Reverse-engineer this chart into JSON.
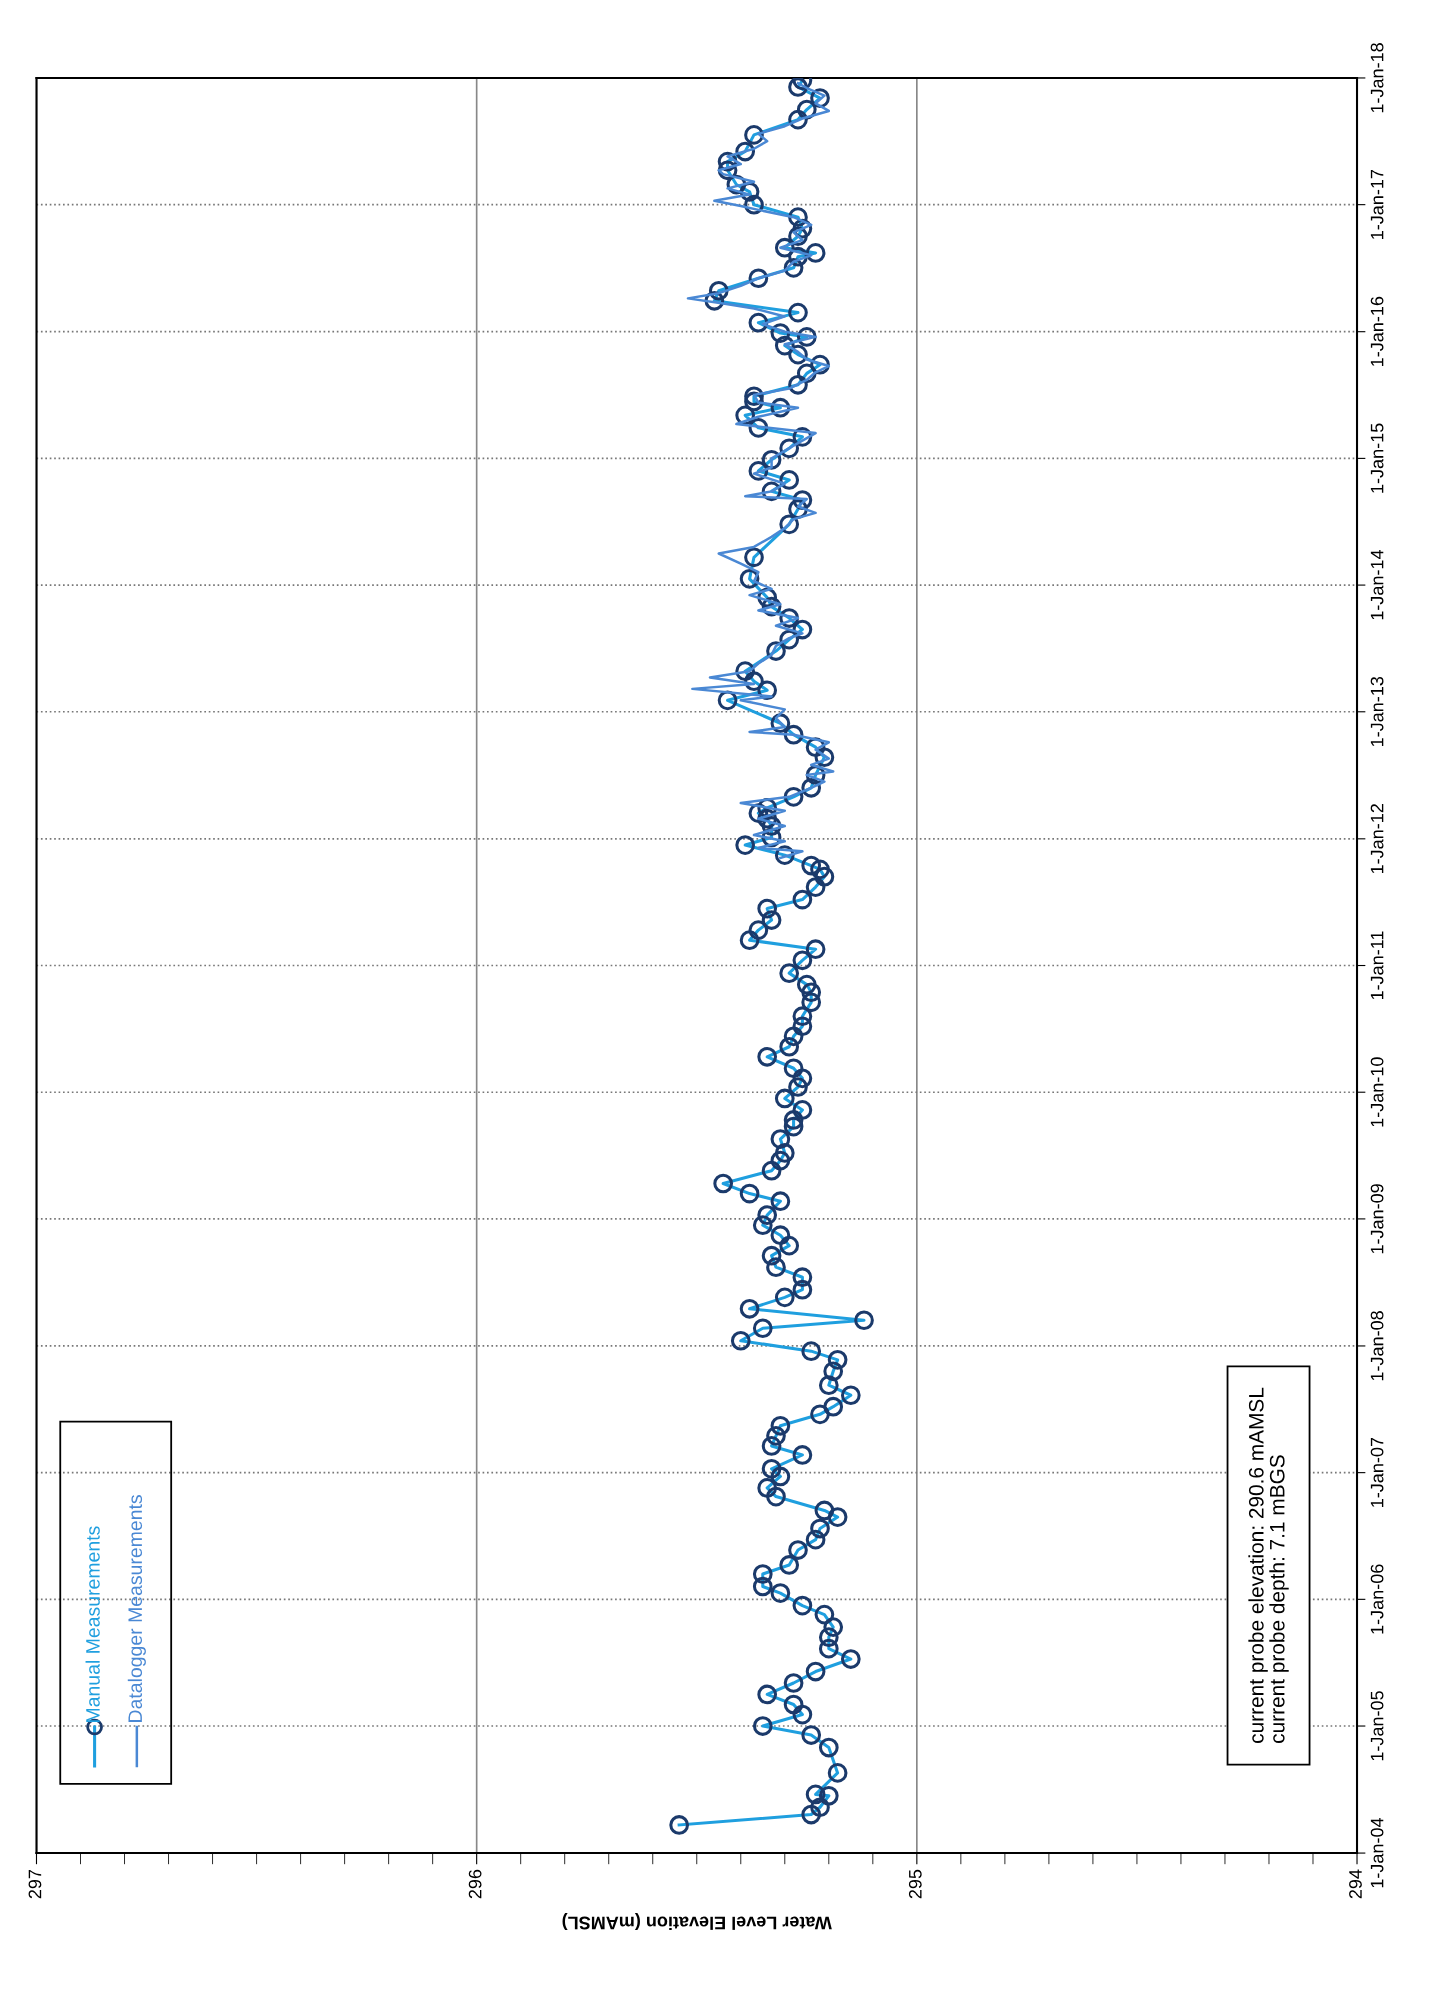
{
  "chart_data": {
    "type": "line",
    "orientation": "horizontal",
    "xlabel": "Water Level Elevation (mAMSL)",
    "annotations": [
      "current probe elevation: 290.6 mAMSL",
      "current probe depth: 7.1 mBGS"
    ],
    "ylim": [
      "2004-01-01",
      "2018-01-01"
    ],
    "yticks": [
      {
        "value": "2004-01-01",
        "label": "1-Jan-04"
      },
      {
        "value": "2005-01-01",
        "label": "1-Jan-05"
      },
      {
        "value": "2006-01-01",
        "label": "1-Jan-06"
      },
      {
        "value": "2007-01-01",
        "label": "1-Jan-07"
      },
      {
        "value": "2008-01-01",
        "label": "1-Jan-08"
      },
      {
        "value": "2009-01-01",
        "label": "1-Jan-09"
      },
      {
        "value": "2010-01-01",
        "label": "1-Jan-10"
      },
      {
        "value": "2011-01-01",
        "label": "1-Jan-11"
      },
      {
        "value": "2012-01-01",
        "label": "1-Jan-12"
      },
      {
        "value": "2013-01-01",
        "label": "1-Jan-13"
      },
      {
        "value": "2014-01-01",
        "label": "1-Jan-14"
      },
      {
        "value": "2015-01-01",
        "label": "1-Jan-15"
      },
      {
        "value": "2016-01-01",
        "label": "1-Jan-16"
      },
      {
        "value": "2017-01-01",
        "label": "1-Jan-17"
      },
      {
        "value": "2018-01-01",
        "label": "1-Jan-18"
      }
    ],
    "xlim": [
      297,
      294
    ],
    "xticks": [
      294,
      {
        "value": 294.1,
        "label": null
      },
      {
        "value": 294.2,
        "label": null
      },
      {
        "value": 294.3,
        "label": null
      },
      {
        "value": 294.4,
        "label": null
      },
      {
        "value": 294.5,
        "label": null
      },
      {
        "value": 294.6,
        "label": null
      },
      {
        "value": 294.7,
        "label": null
      },
      {
        "value": 294.8,
        "label": null
      },
      {
        "value": 294.9,
        "label": null
      },
      295,
      {
        "value": 295.1,
        "label": null
      },
      {
        "value": 295.2,
        "label": null
      },
      {
        "value": 295.3,
        "label": null
      },
      {
        "value": 295.4,
        "label": null
      },
      {
        "value": 295.5,
        "label": null
      },
      {
        "value": 295.6,
        "label": null
      },
      {
        "value": 295.7,
        "label": null
      },
      {
        "value": 295.8,
        "label": null
      },
      {
        "value": 295.9,
        "label": null
      },
      296,
      {
        "value": 296.1,
        "label": null
      },
      {
        "value": 296.2,
        "label": null
      },
      {
        "value": 296.3,
        "label": null
      },
      {
        "value": 296.4,
        "label": null
      },
      {
        "value": 296.5,
        "label": null
      },
      {
        "value": 296.6,
        "label": null
      },
      {
        "value": 296.7,
        "label": null
      },
      {
        "value": 296.8,
        "label": null
      },
      {
        "value": 296.9,
        "label": null
      },
      297
    ],
    "grid": true,
    "legend": "bottom left",
    "series": [
      {
        "name": "Manual Measurements",
        "color": "#1f9fdf",
        "marker": "circle",
        "x": [
          "2004-03-22",
          "2004-04-21",
          "2004-05-12",
          "2004-06-14",
          "2004-06-18",
          "2004-08-19",
          "2004-10-31",
          "2004-12-06",
          "2005-01-01",
          "2005-02-03",
          "2005-03-04",
          "2005-04-02",
          "2005-05-05",
          "2005-06-07",
          "2005-07-13",
          "2005-08-12",
          "2005-09-14",
          "2005-10-13",
          "2005-11-18",
          "2005-12-14",
          "2006-01-19",
          "2006-02-07",
          "2006-03-15",
          "2006-04-10",
          "2006-05-23",
          "2006-06-22",
          "2006-07-24",
          "2006-08-26",
          "2006-09-14",
          "2006-10-24",
          "2006-11-18",
          "2006-12-21",
          "2007-01-12",
          "2007-02-21",
          "2007-03-19",
          "2007-04-17",
          "2007-05-16",
          "2007-06-18",
          "2007-07-10",
          "2007-08-12",
          "2007-09-10",
          "2007-10-20",
          "2007-11-22",
          "2007-12-17",
          "2008-01-16",
          "2008-02-21",
          "2008-03-15",
          "2008-04-17",
          "2008-05-20",
          "2008-06-11",
          "2008-07-17",
          "2008-08-15",
          "2008-09-17",
          "2008-10-16",
          "2008-11-15",
          "2008-12-14",
          "2009-01-12",
          "2009-02-21",
          "2009-03-15",
          "2009-04-13",
          "2009-05-20",
          "2009-06-18",
          "2009-07-10",
          "2009-08-19",
          "2009-09-24",
          "2009-10-13",
          "2009-11-11",
          "2009-12-14",
          "2010-01-16",
          "2010-02-10",
          "2010-03-11",
          "2010-04-13",
          "2010-05-12",
          "2010-06-11",
          "2010-07-10",
          "2010-08-08",
          "2010-09-17",
          "2010-10-16",
          "2010-11-07",
          "2010-12-10",
          "2011-01-16",
          "2011-02-17",
          "2011-03-15",
          "2011-04-13",
          "2011-05-12",
          "2011-06-14",
          "2011-07-10",
          "2011-08-15",
          "2011-09-14",
          "2011-10-05",
          "2011-10-16",
          "2011-11-15",
          "2011-12-14",
          "2012-01-05",
          "2012-02-07",
          "2012-02-28",
          "2012-03-15",
          "2012-03-30",
          "2012-05-01",
          "2012-05-27",
          "2012-07-03",
          "2012-08-23",
          "2012-09-21",
          "2012-10-27",
          "2012-11-29",
          "2013-02-03",
          "2013-03-04",
          "2013-03-30",
          "2013-04-28",
          "2013-06-25",
          "2013-07-28",
          "2013-08-26",
          "2013-09-28",
          "2013-10-31",
          "2013-11-26",
          "2014-01-19",
          "2014-03-22",
          "2014-06-25",
          "2014-08-08",
          "2014-09-03",
          "2014-09-28",
          "2014-10-31",
          "2014-11-26",
          "2014-12-28",
          "2015-01-30",
          "2015-03-04",
          "2015-03-30",
          "2015-05-05",
          "2015-05-27",
          "2015-06-14",
          "2015-06-29",
          "2015-08-01",
          "2015-09-03",
          "2015-09-28",
          "2015-10-27",
          "2015-11-22",
          "2015-12-17",
          "2015-12-28",
          "2016-01-27",
          "2016-02-25",
          "2016-03-30",
          "2016-04-28",
          "2016-06-03",
          "2016-07-03",
          "2016-08-04",
          "2016-08-15",
          "2016-08-30",
          "2016-10-02",
          "2016-10-24",
          "2016-11-26",
          "2017-01-01",
          "2017-02-07",
          "2017-02-28",
          "2017-04-10",
          "2017-05-05",
          "2017-06-03",
          "2017-07-21",
          "2017-09-03",
          "2017-10-02",
          "2017-11-04",
          "2017-12-06",
          "2017-12-25"
        ],
        "values": [
          295.54,
          295.24,
          295.22,
          295.2,
          295.23,
          295.18,
          295.2,
          295.24,
          295.35,
          295.26,
          295.28,
          295.34,
          295.28,
          295.23,
          295.15,
          295.2,
          295.2,
          295.19,
          295.21,
          295.26,
          295.31,
          295.35,
          295.35,
          295.29,
          295.27,
          295.23,
          295.22,
          295.18,
          295.21,
          295.32,
          295.34,
          295.31,
          295.33,
          295.26,
          295.33,
          295.32,
          295.31,
          295.22,
          295.19,
          295.15,
          295.2,
          295.19,
          295.18,
          295.24,
          295.4,
          295.35,
          295.12,
          295.38,
          295.3,
          295.26,
          295.26,
          295.32,
          295.33,
          295.29,
          295.31,
          295.35,
          295.34,
          295.31,
          295.38,
          295.44,
          295.33,
          295.31,
          295.3,
          295.31,
          295.28,
          295.28,
          295.26,
          295.3,
          295.27,
          295.26,
          295.28,
          295.34,
          295.29,
          295.28,
          295.26,
          295.26,
          295.24,
          295.24,
          295.25,
          295.29,
          295.26,
          295.23,
          295.38,
          295.36,
          295.33,
          295.34,
          295.26,
          295.23,
          295.21,
          295.22,
          295.24,
          295.3,
          295.39,
          295.33,
          295.33,
          295.34,
          295.36,
          295.34,
          295.28,
          295.24,
          295.23,
          295.21,
          295.23,
          295.28,
          295.31,
          295.43,
          295.34,
          295.37,
          295.39,
          295.32,
          295.29,
          295.26,
          295.29,
          295.33,
          295.34,
          295.38,
          295.37,
          295.29,
          295.27,
          295.26,
          295.33,
          295.29,
          295.36,
          295.33,
          295.29,
          295.26,
          295.36,
          295.39,
          295.31,
          295.37,
          295.37,
          295.27,
          295.25,
          295.22,
          295.27,
          295.3,
          295.25,
          295.31,
          295.36,
          295.27,
          295.46,
          295.45,
          295.36,
          295.28,
          295.27,
          295.23,
          295.3,
          295.27,
          295.26,
          295.27,
          295.37,
          295.38,
          295.41,
          295.43,
          295.43,
          295.39,
          295.37,
          295.27,
          295.25,
          295.22,
          295.27,
          295.26
        ]
      },
      {
        "name": "Datalogger Measurements",
        "color": "#4a88d4",
        "marker": "none",
        "x": [
          "2011-11-07",
          "2011-11-26",
          "2011-12-06",
          "2011-12-25",
          "2012-01-12",
          "2012-02-07",
          "2012-02-28",
          "2012-03-22",
          "2012-04-13",
          "2012-05-01",
          "2012-05-27",
          "2012-06-14",
          "2012-07-03",
          "2012-07-13",
          "2012-08-01",
          "2012-08-19",
          "2012-09-14",
          "2012-10-05",
          "2012-10-27",
          "2012-11-04",
          "2012-11-18",
          "2012-12-14",
          "2013-01-08",
          "2013-02-03",
          "2013-02-14",
          "2013-03-08",
          "2013-03-22",
          "2013-04-10",
          "2013-04-28",
          "2013-05-20",
          "2013-06-14",
          "2013-07-10",
          "2013-08-01",
          "2013-08-15",
          "2013-09-06",
          "2013-09-28",
          "2013-10-20",
          "2013-11-07",
          "2013-12-03",
          "2013-12-21",
          "2014-01-12",
          "2014-02-07",
          "2014-03-04",
          "2014-04-02",
          "2014-04-21",
          "2014-05-20",
          "2014-06-14",
          "2014-07-10",
          "2014-07-28",
          "2014-08-15",
          "2014-09-06",
          "2014-09-14",
          "2014-09-28",
          "2014-10-20",
          "2014-11-18",
          "2014-12-06",
          "2015-01-01",
          "2015-01-23",
          "2015-02-14",
          "2015-03-15",
          "2015-04-10",
          "2015-05-01",
          "2015-05-27",
          "2015-06-11",
          "2015-07-03",
          "2015-07-21",
          "2015-08-15",
          "2015-09-06",
          "2015-09-24",
          "2015-10-13",
          "2015-11-04",
          "2015-11-26",
          "2015-12-17",
          "2016-01-01",
          "2016-01-23",
          "2016-02-14",
          "2016-03-08",
          "2016-03-22",
          "2016-04-06",
          "2016-04-21",
          "2016-05-12",
          "2016-06-03",
          "2016-06-25",
          "2016-07-21",
          "2016-08-08",
          "2016-08-30",
          "2016-09-21",
          "2016-10-13",
          "2016-11-04",
          "2016-11-26",
          "2016-12-17",
          "2016-12-28",
          "2017-01-12",
          "2017-01-30",
          "2017-02-17",
          "2017-03-08",
          "2017-03-30",
          "2017-04-10",
          "2017-04-28",
          "2017-05-20",
          "2017-06-11",
          "2017-07-03",
          "2017-07-24",
          "2017-08-15",
          "2017-09-06",
          "2017-09-28",
          "2017-10-20",
          "2017-11-11",
          "2017-12-03",
          "2017-12-17"
        ],
        "values": [
          295.31,
          295.26,
          295.36,
          295.3,
          295.37,
          295.3,
          295.36,
          295.3,
          295.4,
          295.29,
          295.24,
          295.21,
          295.25,
          295.19,
          295.24,
          295.2,
          295.23,
          295.2,
          295.28,
          295.38,
          295.3,
          295.32,
          295.3,
          295.4,
          295.33,
          295.51,
          295.37,
          295.47,
          295.38,
          295.36,
          295.33,
          295.32,
          295.29,
          295.26,
          295.32,
          295.27,
          295.36,
          295.31,
          295.38,
          295.33,
          295.37,
          295.36,
          295.4,
          295.45,
          295.37,
          295.33,
          295.3,
          295.28,
          295.23,
          295.27,
          295.25,
          295.39,
          295.33,
          295.3,
          295.37,
          295.33,
          295.33,
          295.3,
          295.27,
          295.23,
          295.41,
          295.36,
          295.27,
          295.36,
          295.37,
          295.29,
          295.25,
          295.23,
          295.2,
          295.25,
          295.27,
          295.3,
          295.23,
          295.3,
          295.35,
          295.3,
          295.37,
          295.44,
          295.52,
          295.45,
          295.4,
          295.36,
          295.3,
          295.28,
          295.24,
          295.31,
          295.26,
          295.28,
          295.24,
          295.28,
          295.36,
          295.4,
          295.46,
          295.38,
          295.43,
          295.37,
          295.44,
          295.45,
          295.4,
          295.43,
          295.37,
          295.34,
          295.36,
          295.3,
          295.26,
          295.2,
          295.23,
          295.21,
          295.25,
          295.27
        ]
      }
    ]
  }
}
